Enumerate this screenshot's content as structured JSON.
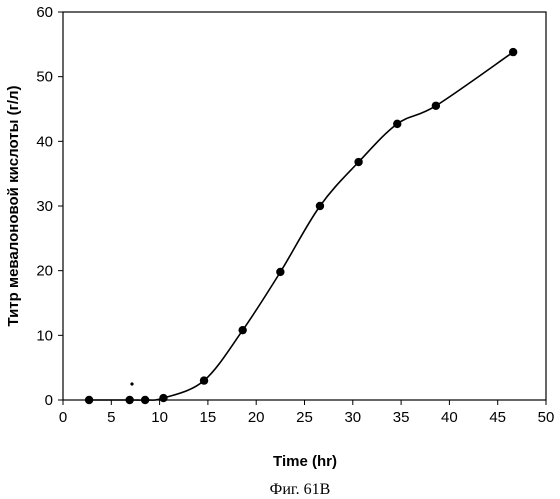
{
  "chart_data": {
    "type": "line",
    "xlabel": "Time (hr)",
    "ylabel": "Титр мевалоновой кислоты (г/л)",
    "caption": "Фиг. 61В",
    "xlim": [
      0,
      50
    ],
    "ylim": [
      0,
      60
    ],
    "xticks": [
      "0",
      "5",
      "10",
      "15",
      "20",
      "25",
      "30",
      "35",
      "40",
      "45",
      "50"
    ],
    "yticks": [
      "0",
      "10",
      "20",
      "30",
      "40",
      "50",
      "60"
    ],
    "grid": false,
    "legend": "none",
    "series": [
      {
        "x": [
          2.7,
          6.9,
          8.5,
          10.4,
          14.6,
          18.6,
          22.5,
          26.6,
          30.6,
          34.6,
          38.6,
          46.6
        ],
        "y": [
          0.0,
          0.0,
          0.0,
          0.3,
          3.0,
          10.8,
          19.8,
          30.0,
          36.8,
          42.7,
          45.5,
          53.8
        ]
      }
    ]
  }
}
